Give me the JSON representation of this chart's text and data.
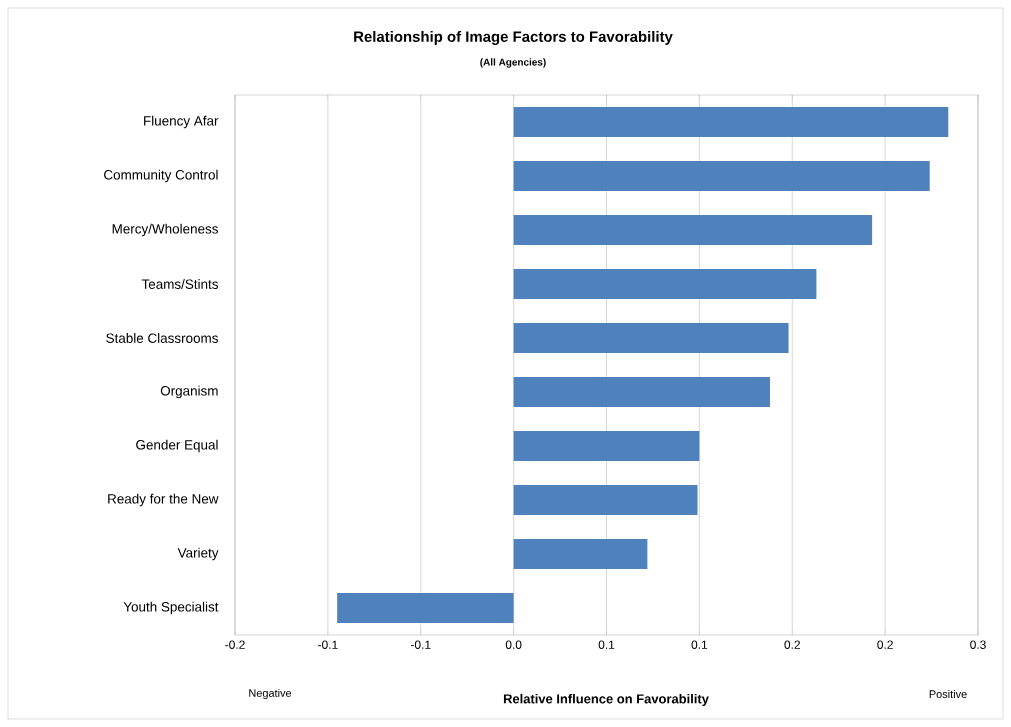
{
  "chart_data": {
    "type": "bar",
    "orientation": "horizontal",
    "title": "Relationship of Image Factors to Favorability",
    "subtitle": "(All Agencies)",
    "xlabel": "Relative Influence on Favorability",
    "categories": [
      "Fluency Afar",
      "Community Control",
      "Mercy/Wholeness",
      "Teams/Stints",
      "Stable Classrooms",
      "Organism",
      "Gender Equal",
      "Ready for the New",
      "Variety",
      "Youth Specialist"
    ],
    "values": [
      0.234,
      0.224,
      0.193,
      0.163,
      0.148,
      0.138,
      0.1,
      0.099,
      0.072,
      -0.095
    ],
    "color": "#4f81bd",
    "xlim": [
      -0.15,
      0.25
    ],
    "xticks": [
      {
        "value": -0.15,
        "label": "-0.2"
      },
      {
        "value": -0.1,
        "label": "-0.1"
      },
      {
        "value": -0.05,
        "label": "-0.1"
      },
      {
        "value": 0,
        "label": "0.0"
      },
      {
        "value": 0.05,
        "label": "0.1"
      },
      {
        "value": 0.1,
        "label": "0.1"
      },
      {
        "value": 0.15,
        "label": "0.2"
      },
      {
        "value": 0.2,
        "label": "0.2"
      },
      {
        "value": 0.25,
        "label": "0.3"
      }
    ],
    "grid": "x",
    "annotations": [
      "Negative",
      "Positive"
    ]
  }
}
